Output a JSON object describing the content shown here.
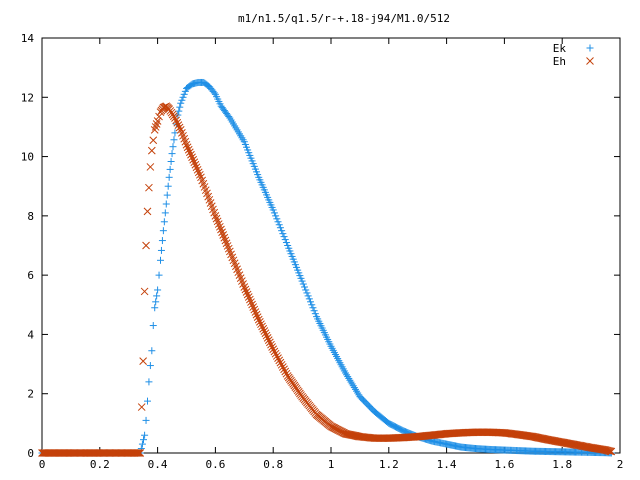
{
  "chart_data": {
    "type": "scatter",
    "title": "m1/n1.5/q1.5/r-+.18-j94/M1.0/512",
    "xlabel": "",
    "ylabel": "",
    "xlim": [
      0,
      2
    ],
    "ylim": [
      0,
      14
    ],
    "x_ticks": [
      "0",
      "0.2",
      "0.4",
      "0.6",
      "0.8",
      "1",
      "1.2",
      "1.4",
      "1.6",
      "1.8",
      "2"
    ],
    "y_ticks": [
      "0",
      "2",
      "4",
      "6",
      "8",
      "10",
      "12",
      "14"
    ],
    "grid": false,
    "legend_position": "top-right",
    "series": [
      {
        "name": "Ek",
        "marker": "plus",
        "color": "#1f8fe6",
        "x": [
          0,
          0.05,
          0.1,
          0.15,
          0.2,
          0.25,
          0.3,
          0.34,
          0.355,
          0.36,
          0.365,
          0.37,
          0.375,
          0.38,
          0.385,
          0.39,
          0.4,
          0.41,
          0.42,
          0.43,
          0.44,
          0.45,
          0.46,
          0.47,
          0.48,
          0.5,
          0.52,
          0.54,
          0.56,
          0.58,
          0.6,
          0.62,
          0.65,
          0.7,
          0.75,
          0.8,
          0.85,
          0.9,
          0.95,
          1.0,
          1.05,
          1.1,
          1.15,
          1.2,
          1.25,
          1.3,
          1.35,
          1.4,
          1.45,
          1.5,
          1.55,
          1.6,
          1.65,
          1.7,
          1.75,
          1.8,
          1.85,
          1.9,
          1.95,
          1.97
        ],
        "y": [
          0,
          0,
          0,
          0,
          0,
          0,
          0,
          0,
          0.6,
          1.1,
          1.75,
          2.4,
          2.95,
          3.45,
          4.3,
          4.9,
          5.5,
          6.5,
          7.5,
          8.4,
          9.3,
          10.1,
          10.8,
          11.4,
          11.8,
          12.3,
          12.45,
          12.5,
          12.5,
          12.35,
          12.1,
          11.7,
          11.3,
          10.5,
          9.3,
          8.2,
          7.0,
          5.8,
          4.6,
          3.6,
          2.7,
          1.9,
          1.4,
          1.0,
          0.75,
          0.55,
          0.4,
          0.3,
          0.2,
          0.15,
          0.12,
          0.1,
          0.08,
          0.06,
          0.05,
          0.04,
          0.03,
          0.02,
          0.01,
          0
        ]
      },
      {
        "name": "Eh",
        "marker": "cross",
        "color": "#c4410a",
        "x": [
          0,
          0.05,
          0.1,
          0.15,
          0.2,
          0.25,
          0.3,
          0.34,
          0.35,
          0.355,
          0.36,
          0.365,
          0.37,
          0.375,
          0.38,
          0.385,
          0.39,
          0.4,
          0.41,
          0.42,
          0.43,
          0.44,
          0.46,
          0.48,
          0.5,
          0.55,
          0.6,
          0.65,
          0.7,
          0.75,
          0.8,
          0.85,
          0.9,
          0.95,
          1.0,
          1.05,
          1.1,
          1.15,
          1.2,
          1.25,
          1.3,
          1.35,
          1.4,
          1.45,
          1.5,
          1.55,
          1.6,
          1.65,
          1.7,
          1.75,
          1.8,
          1.85,
          1.9,
          1.95,
          1.97
        ],
        "y": [
          0,
          0,
          0,
          0,
          0,
          0,
          0,
          0,
          3.1,
          5.45,
          7.0,
          8.15,
          8.95,
          9.65,
          10.2,
          10.55,
          10.9,
          11.2,
          11.5,
          11.65,
          11.7,
          11.6,
          11.3,
          10.9,
          10.4,
          9.3,
          8.0,
          6.8,
          5.6,
          4.5,
          3.5,
          2.6,
          1.9,
          1.3,
          0.9,
          0.65,
          0.55,
          0.5,
          0.5,
          0.52,
          0.55,
          0.6,
          0.65,
          0.68,
          0.7,
          0.7,
          0.68,
          0.62,
          0.55,
          0.45,
          0.36,
          0.27,
          0.18,
          0.1,
          0.05
        ]
      }
    ]
  }
}
